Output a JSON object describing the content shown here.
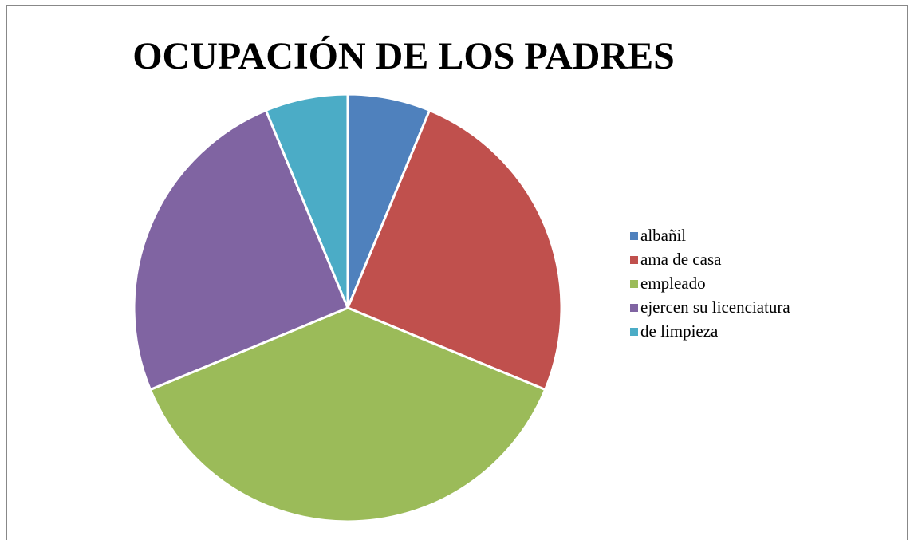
{
  "chart_data": {
    "type": "pie",
    "title": "OCUPACIÓN DE LOS PADRES",
    "categories": [
      "albañil",
      "ama de casa",
      "empleado",
      "ejercen su licenciatura",
      "de limpieza"
    ],
    "values": [
      1,
      4,
      6,
      4,
      1
    ],
    "colors": [
      "#4f81bd",
      "#c0504d",
      "#9bbb59",
      "#8064a2",
      "#4bacc6"
    ],
    "legend": "right"
  }
}
